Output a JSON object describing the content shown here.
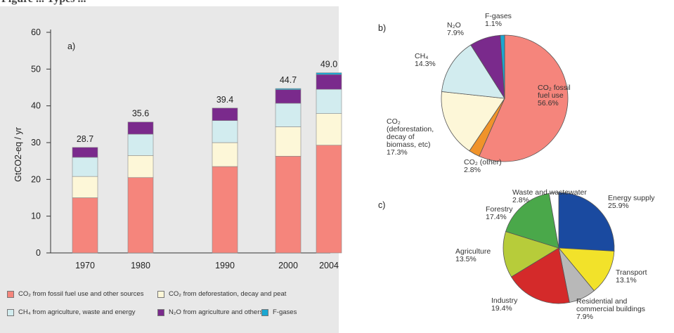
{
  "header_title": "Figure ... Types ...",
  "colors": {
    "co2_fossil": "#f5857c",
    "co2_deforestation": "#fdf7d8",
    "ch4": "#d2ecef",
    "n2o": "#7a2a8c",
    "fgases": "#1aa7d1",
    "co2_other": "#f0932a",
    "energy_supply": "#1a4aa0",
    "transport": "#f2e22a",
    "residential": "#b8b8b8",
    "industry": "#d42a2a",
    "agriculture": "#b7cc3a",
    "forestry": "#4aa84a",
    "waste": "#ffffff"
  },
  "chart_data": [
    {
      "panel": "a)",
      "type": "bar",
      "stacked": true,
      "ylabel": "GtCO2-eq / yr",
      "ylim": [
        0,
        60
      ],
      "yticks": [
        0,
        10,
        20,
        30,
        40,
        50,
        60
      ],
      "categories": [
        "1970",
        "1980",
        "1990",
        "2000",
        "2004"
      ],
      "totals": [
        "28.7",
        "35.6",
        "39.4",
        "44.7",
        "49.0"
      ],
      "series": [
        {
          "name": "CO2 from fossil fuel use and other sources",
          "values": [
            15.0,
            20.5,
            23.5,
            26.3,
            29.3
          ]
        },
        {
          "name": "CO2 from deforestation, decay and peat",
          "values": [
            5.8,
            6.0,
            6.5,
            8.0,
            8.6
          ]
        },
        {
          "name": "CH4 from agriculture, waste and energy",
          "values": [
            5.2,
            5.8,
            6.0,
            6.4,
            6.6
          ]
        },
        {
          "name": "N2O from agriculture and others",
          "values": [
            2.7,
            3.3,
            3.4,
            3.7,
            4.0
          ]
        },
        {
          "name": "F-gases",
          "values": [
            0.0,
            0.0,
            0.0,
            0.3,
            0.5
          ]
        }
      ],
      "legend_items": [
        "CO₂ from fossil fuel use and other sources",
        "CO₂ from deforestation, decay and peat",
        "CH₄ from agriculture, waste and energy",
        "N₂O from agriculture and others",
        "F-gases"
      ]
    },
    {
      "panel": "b)",
      "type": "pie",
      "slices": [
        {
          "label": [
            "CO₂ fossil",
            "fuel use",
            "56.6%"
          ],
          "value": 56.6,
          "color_key": "co2_fossil"
        },
        {
          "label": [
            "CO₂ (other)",
            "2.8%"
          ],
          "value": 2.8,
          "color_key": "co2_other"
        },
        {
          "label": [
            "CO₂",
            "(deforestation,",
            "decay of",
            "biomass, etc)",
            "17.3%"
          ],
          "value": 17.3,
          "color_key": "co2_deforestation"
        },
        {
          "label": [
            "CH₄",
            "14.3%"
          ],
          "value": 14.3,
          "color_key": "ch4"
        },
        {
          "label": [
            "N₂O",
            "7.9%"
          ],
          "value": 7.9,
          "color_key": "n2o"
        },
        {
          "label": [
            "F-gases",
            "1.1%"
          ],
          "value": 1.1,
          "color_key": "fgases"
        }
      ]
    },
    {
      "panel": "c)",
      "type": "pie",
      "slices": [
        {
          "label": [
            "Energy supply",
            "25.9%"
          ],
          "value": 25.9,
          "color_key": "energy_supply"
        },
        {
          "label": [
            "Transport",
            "13.1%"
          ],
          "value": 13.1,
          "color_key": "transport"
        },
        {
          "label": [
            "Residential and",
            "commercial buildings",
            "7.9%"
          ],
          "value": 7.9,
          "color_key": "residential"
        },
        {
          "label": [
            "Industry",
            "19.4%"
          ],
          "value": 19.4,
          "color_key": "industry"
        },
        {
          "label": [
            "Agriculture",
            "13.5%"
          ],
          "value": 13.5,
          "color_key": "agriculture"
        },
        {
          "label": [
            "Forestry",
            "17.4%"
          ],
          "value": 17.4,
          "color_key": "forestry"
        },
        {
          "label": [
            "Waste and wastewater",
            "2.8%"
          ],
          "value": 2.8,
          "color_key": "waste"
        }
      ]
    }
  ]
}
